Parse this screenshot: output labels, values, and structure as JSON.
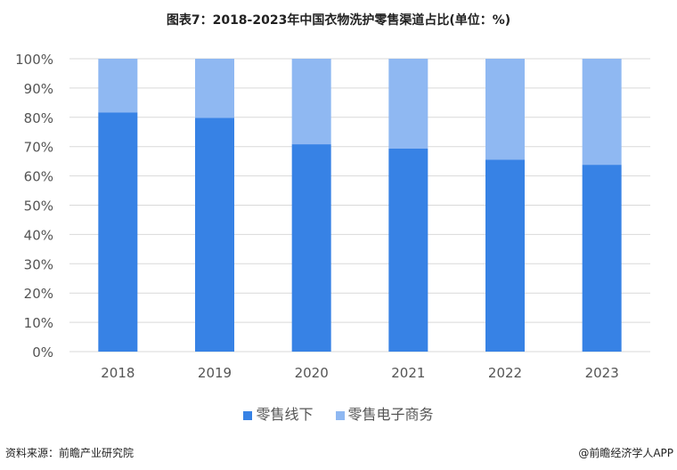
{
  "chart_data": {
    "type": "bar",
    "stacked": true,
    "title": "图表7：2018-2023年中国衣物洗护零售渠道占比(单位：%)",
    "categories": [
      "2018",
      "2019",
      "2020",
      "2021",
      "2022",
      "2023"
    ],
    "series": [
      {
        "name": "零售线下",
        "values": [
          81.7,
          79.8,
          70.8,
          69.3,
          65.5,
          63.8
        ],
        "color": "#3782e5"
      },
      {
        "name": "零售电子商务",
        "values": [
          18.3,
          20.2,
          29.2,
          30.7,
          34.5,
          36.2
        ],
        "color": "#8fb8f2"
      }
    ],
    "ylim": [
      0,
      100
    ],
    "yticks": [
      "0%",
      "10%",
      "20%",
      "30%",
      "40%",
      "50%",
      "60%",
      "70%",
      "80%",
      "90%",
      "100%"
    ],
    "grid": true,
    "legend": "bottom"
  },
  "footer": {
    "source": "资料来源：前瞻产业研究院",
    "credit": "@前瞻经济学人APP"
  }
}
